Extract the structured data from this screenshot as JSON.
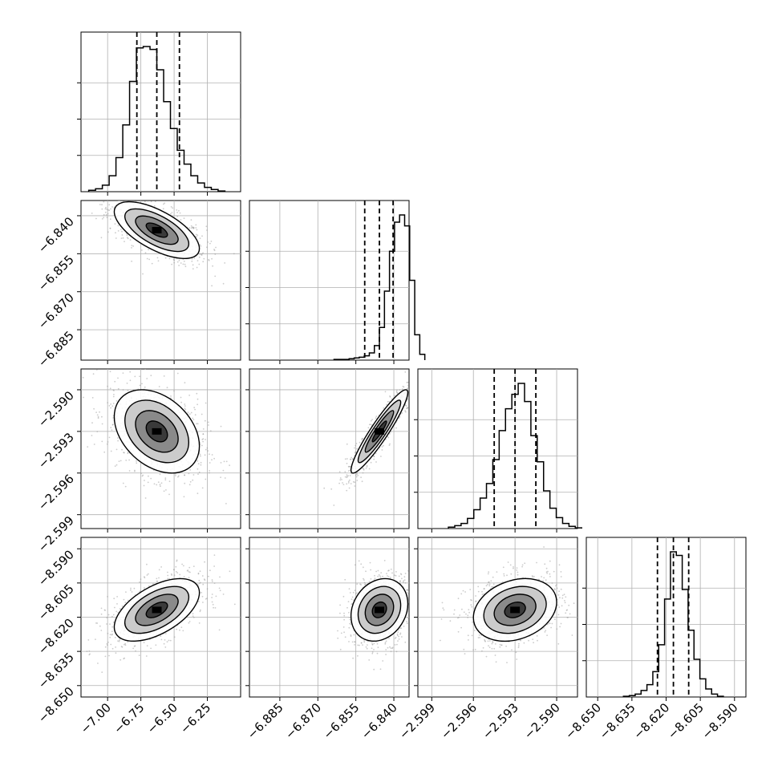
{
  "chart_data": {
    "type": "corner",
    "parameters": [
      {
        "name": "",
        "range": [
          -7.2,
          -6.0
        ],
        "ticks": [
          "-7.00",
          "-6.75",
          "-6.50",
          "-6.25"
        ],
        "tick_values": [
          -7.0,
          -6.75,
          -6.5,
          -6.25
        ]
      },
      {
        "name": "",
        "range": [
          -6.897,
          -6.834
        ],
        "ticks": [
          "-6.885",
          "-6.870",
          "-6.855",
          "-6.840"
        ],
        "tick_values": [
          -6.885,
          -6.87,
          -6.855,
          -6.84
        ]
      },
      {
        "name": "",
        "range": [
          -2.6,
          -2.5885
        ],
        "ticks": [
          "-2.599",
          "-2.596",
          "-2.593",
          "-2.590"
        ],
        "tick_values": [
          -2.599,
          -2.596,
          -2.593,
          -2.59
        ]
      },
      {
        "name": "",
        "range": [
          -8.655,
          -8.585
        ],
        "ticks": [
          "-8.650",
          "-8.635",
          "-8.620",
          "-8.605",
          "-8.590"
        ],
        "tick_values": [
          -8.65,
          -8.635,
          -8.62,
          -8.605,
          -8.59
        ]
      }
    ],
    "y_axis_ticks": {
      "row1": [
        "-6.840",
        "-6.855",
        "-6.870",
        "-6.885"
      ],
      "row2": [
        "-2.590",
        "-2.593",
        "-2.596",
        "-2.599"
      ],
      "row3": [
        "-8.590",
        "-8.605",
        "-8.620",
        "-8.635",
        "-8.650"
      ]
    },
    "quantiles": [
      {
        "q16": -6.78,
        "q50": -6.63,
        "q84": -6.46
      },
      {
        "q16": -6.8515,
        "q50": -6.8457,
        "q84": -6.8403
      },
      {
        "q16": -2.5945,
        "q50": -2.593,
        "q84": -2.5915
      },
      {
        "q16": -8.6238,
        "q50": -8.6168,
        "q84": -8.6101
      }
    ],
    "histograms": [
      {
        "counts": [
          2,
          4,
          9,
          22,
          47,
          92,
          152,
          198,
          200,
          196,
          168,
          124,
          87,
          57,
          38,
          22,
          12,
          6,
          3,
          1
        ]
      },
      {
        "counts": [
          1,
          1,
          1,
          2,
          3,
          4,
          6,
          10,
          20,
          45,
          95,
          150,
          190,
          200,
          185,
          110,
          35,
          8
        ]
      },
      {
        "counts": [
          2,
          4,
          7,
          14,
          26,
          42,
          62,
          95,
          135,
          165,
          185,
          200,
          175,
          128,
          92,
          52,
          28,
          15,
          7,
          3,
          1
        ]
      },
      {
        "counts": [
          1,
          2,
          4,
          9,
          17,
          35,
          72,
          135,
          200,
          195,
          148,
          92,
          52,
          25,
          11,
          4,
          1
        ]
      }
    ],
    "correlations": {
      "1,0": {
        "rho": -0.65,
        "spread": [
          1.0,
          1.0
        ]
      },
      "2,0": {
        "rho": -0.35,
        "spread": [
          1.0,
          1.0
        ]
      },
      "2,1": {
        "rho": 0.93,
        "spread": [
          1.0,
          1.0
        ]
      },
      "3,0": {
        "rho": 0.55,
        "spread": [
          1.0,
          1.0
        ]
      },
      "3,1": {
        "rho": 0.2,
        "spread": [
          1.0,
          1.0
        ]
      },
      "3,2": {
        "rho": 0.25,
        "spread": [
          1.0,
          1.0
        ]
      }
    },
    "grid": true,
    "colors": {
      "hist": "#000000",
      "points": "#9a9a9a",
      "contour": "#000000",
      "fill_dark": "#000000",
      "fill_light": "#ffffff",
      "grid": "#b0b0b0"
    }
  }
}
